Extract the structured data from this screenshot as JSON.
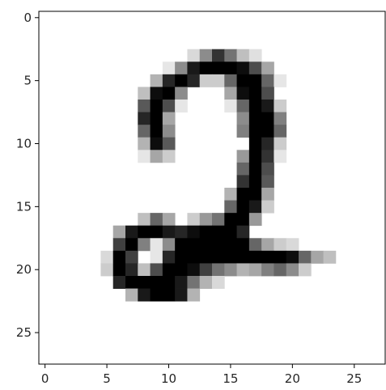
{
  "chart_data": {
    "type": "heatmap",
    "colormap": "gray_r",
    "x_ticks": [
      0,
      5,
      10,
      15,
      20,
      25
    ],
    "y_ticks": [
      0,
      5,
      10,
      15,
      20,
      25
    ],
    "x_tick_labels": [
      "0",
      "5",
      "10",
      "15",
      "20",
      "25"
    ],
    "y_tick_labels": [
      "0",
      "5",
      "10",
      "15",
      "20",
      "25"
    ],
    "xlim": [
      -0.5,
      27.5
    ],
    "ylim": [
      27.5,
      -0.5
    ],
    "grid": false,
    "rows": 28,
    "cols": 28,
    "pixels": [
      [
        3,
        12,
        0.15
      ],
      [
        3,
        13,
        0.45
      ],
      [
        3,
        14,
        0.8
      ],
      [
        3,
        15,
        0.55
      ],
      [
        3,
        16,
        0.25
      ],
      [
        3,
        17,
        0.12
      ],
      [
        4,
        10,
        0.1
      ],
      [
        4,
        11,
        0.45
      ],
      [
        4,
        12,
        0.9
      ],
      [
        4,
        13,
        1.0
      ],
      [
        4,
        14,
        1.0
      ],
      [
        4,
        15,
        1.0
      ],
      [
        4,
        16,
        0.95
      ],
      [
        4,
        17,
        0.7
      ],
      [
        4,
        18,
        0.35
      ],
      [
        5,
        9,
        0.3
      ],
      [
        5,
        10,
        0.85
      ],
      [
        5,
        11,
        1.0
      ],
      [
        5,
        12,
        0.85
      ],
      [
        5,
        13,
        0.2
      ],
      [
        5,
        14,
        0.2
      ],
      [
        5,
        15,
        0.6
      ],
      [
        5,
        16,
        1.0
      ],
      [
        5,
        17,
        1.0
      ],
      [
        5,
        18,
        0.6
      ],
      [
        5,
        19,
        0.1
      ],
      [
        6,
        8,
        0.25
      ],
      [
        6,
        9,
        0.95
      ],
      [
        6,
        10,
        1.0
      ],
      [
        6,
        11,
        0.45
      ],
      [
        6,
        15,
        0.35
      ],
      [
        6,
        16,
        0.95
      ],
      [
        6,
        17,
        1.0
      ],
      [
        6,
        18,
        0.7
      ],
      [
        7,
        8,
        0.65
      ],
      [
        7,
        9,
        1.0
      ],
      [
        7,
        10,
        0.7
      ],
      [
        7,
        11,
        0.1
      ],
      [
        7,
        15,
        0.1
      ],
      [
        7,
        16,
        0.6
      ],
      [
        7,
        17,
        1.0
      ],
      [
        7,
        18,
        0.9
      ],
      [
        7,
        19,
        0.2
      ],
      [
        8,
        8,
        0.85
      ],
      [
        8,
        9,
        1.0
      ],
      [
        8,
        10,
        0.35
      ],
      [
        8,
        16,
        0.45
      ],
      [
        8,
        17,
        1.0
      ],
      [
        8,
        18,
        1.0
      ],
      [
        8,
        19,
        0.5
      ],
      [
        9,
        8,
        0.6
      ],
      [
        9,
        9,
        1.0
      ],
      [
        9,
        10,
        0.45
      ],
      [
        9,
        16,
        0.5
      ],
      [
        9,
        17,
        1.0
      ],
      [
        9,
        18,
        1.0
      ],
      [
        9,
        19,
        0.6
      ],
      [
        10,
        8,
        0.3
      ],
      [
        10,
        9,
        0.95
      ],
      [
        10,
        10,
        0.65
      ],
      [
        10,
        17,
        1.0
      ],
      [
        10,
        18,
        0.85
      ],
      [
        10,
        19,
        0.2
      ],
      [
        11,
        8,
        0.1
      ],
      [
        11,
        9,
        0.35
      ],
      [
        11,
        10,
        0.2
      ],
      [
        11,
        16,
        0.4
      ],
      [
        11,
        17,
        1.0
      ],
      [
        11,
        18,
        0.8
      ],
      [
        11,
        19,
        0.1
      ],
      [
        12,
        16,
        0.6
      ],
      [
        12,
        17,
        1.0
      ],
      [
        12,
        18,
        0.7
      ],
      [
        13,
        16,
        0.8
      ],
      [
        13,
        17,
        1.0
      ],
      [
        13,
        18,
        0.65
      ],
      [
        14,
        15,
        0.3
      ],
      [
        14,
        16,
        1.0
      ],
      [
        14,
        17,
        1.0
      ],
      [
        14,
        18,
        0.35
      ],
      [
        15,
        15,
        0.6
      ],
      [
        15,
        16,
        1.0
      ],
      [
        15,
        17,
        0.9
      ],
      [
        15,
        18,
        0.2
      ],
      [
        16,
        8,
        0.25
      ],
      [
        16,
        9,
        0.6
      ],
      [
        16,
        10,
        0.35
      ],
      [
        16,
        12,
        0.2
      ],
      [
        16,
        13,
        0.4
      ],
      [
        16,
        14,
        0.55
      ],
      [
        16,
        15,
        1.0
      ],
      [
        16,
        16,
        1.0
      ],
      [
        16,
        17,
        0.4
      ],
      [
        17,
        6,
        0.35
      ],
      [
        17,
        7,
        0.9
      ],
      [
        17,
        8,
        1.0
      ],
      [
        17,
        9,
        1.0
      ],
      [
        17,
        10,
        0.9
      ],
      [
        17,
        11,
        0.85
      ],
      [
        17,
        12,
        0.95
      ],
      [
        17,
        13,
        1.0
      ],
      [
        17,
        14,
        1.0
      ],
      [
        17,
        15,
        1.0
      ],
      [
        17,
        16,
        0.85
      ],
      [
        18,
        6,
        0.75
      ],
      [
        18,
        7,
        1.0
      ],
      [
        18,
        8,
        0.5
      ],
      [
        18,
        9,
        0.1
      ],
      [
        18,
        10,
        0.45
      ],
      [
        18,
        11,
        1.0
      ],
      [
        18,
        12,
        1.0
      ],
      [
        18,
        13,
        1.0
      ],
      [
        18,
        14,
        1.0
      ],
      [
        18,
        15,
        1.0
      ],
      [
        18,
        16,
        1.0
      ],
      [
        18,
        17,
        0.6
      ],
      [
        18,
        18,
        0.35
      ],
      [
        18,
        19,
        0.2
      ],
      [
        18,
        20,
        0.15
      ],
      [
        19,
        5,
        0.15
      ],
      [
        19,
        6,
        1.0
      ],
      [
        19,
        7,
        0.75
      ],
      [
        19,
        9,
        0.1
      ],
      [
        19,
        10,
        0.85
      ],
      [
        19,
        11,
        1.0
      ],
      [
        19,
        12,
        1.0
      ],
      [
        19,
        13,
        1.0
      ],
      [
        19,
        14,
        1.0
      ],
      [
        19,
        15,
        1.0
      ],
      [
        19,
        16,
        1.0
      ],
      [
        19,
        17,
        1.0
      ],
      [
        19,
        18,
        1.0
      ],
      [
        19,
        19,
        1.0
      ],
      [
        19,
        20,
        0.95
      ],
      [
        19,
        21,
        0.6
      ],
      [
        19,
        22,
        0.35
      ],
      [
        19,
        23,
        0.25
      ],
      [
        20,
        5,
        0.2
      ],
      [
        20,
        6,
        1.0
      ],
      [
        20,
        7,
        0.85
      ],
      [
        20,
        8,
        0.25
      ],
      [
        20,
        9,
        0.7
      ],
      [
        20,
        10,
        1.0
      ],
      [
        20,
        11,
        1.0
      ],
      [
        20,
        12,
        0.95
      ],
      [
        20,
        13,
        0.75
      ],
      [
        20,
        14,
        0.55
      ],
      [
        20,
        15,
        0.45
      ],
      [
        20,
        16,
        0.3
      ],
      [
        20,
        17,
        0.35
      ],
      [
        20,
        18,
        0.5
      ],
      [
        20,
        19,
        0.6
      ],
      [
        20,
        20,
        0.45
      ],
      [
        20,
        21,
        0.2
      ],
      [
        21,
        6,
        0.85
      ],
      [
        21,
        7,
        1.0
      ],
      [
        21,
        8,
        1.0
      ],
      [
        21,
        9,
        1.0
      ],
      [
        21,
        10,
        1.0
      ],
      [
        21,
        11,
        0.9
      ],
      [
        21,
        12,
        0.55
      ],
      [
        21,
        13,
        0.3
      ],
      [
        21,
        14,
        0.15
      ],
      [
        22,
        7,
        0.3
      ],
      [
        22,
        8,
        0.9
      ],
      [
        22,
        9,
        1.0
      ],
      [
        22,
        10,
        1.0
      ],
      [
        22,
        11,
        0.9
      ],
      [
        22,
        12,
        0.3
      ]
    ]
  }
}
